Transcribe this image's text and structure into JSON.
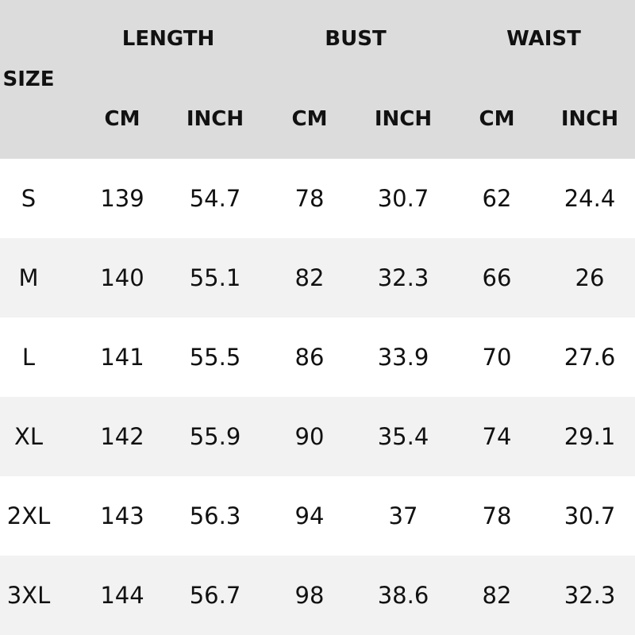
{
  "header": {
    "size_label": "SIZE",
    "groups": [
      "LENGTH",
      "BUST",
      "WAIST"
    ],
    "units": [
      "CM",
      "INCH",
      "CM",
      "INCH",
      "CM",
      "INCH"
    ]
  },
  "colors": {
    "header_bg": "#dcdcdc",
    "alt_row_bg": "#f2f2f2",
    "row_bg": "#ffffff"
  },
  "rows": [
    [
      "S",
      "139",
      "54.7",
      "78",
      "30.7",
      "62",
      "24.4"
    ],
    [
      "M",
      "140",
      "55.1",
      "82",
      "32.3",
      "66",
      "26"
    ],
    [
      "L",
      "141",
      "55.5",
      "86",
      "33.9",
      "70",
      "27.6"
    ],
    [
      "XL",
      "142",
      "55.9",
      "90",
      "35.4",
      "74",
      "29.1"
    ],
    [
      "2XL",
      "143",
      "56.3",
      "94",
      "37",
      "78",
      "30.7"
    ],
    [
      "3XL",
      "144",
      "56.7",
      "98",
      "38.6",
      "82",
      "32.3"
    ]
  ]
}
